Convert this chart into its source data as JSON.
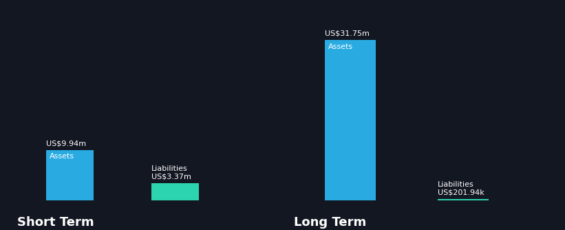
{
  "background_color": "#131722",
  "short_term_assets_value": 9.94,
  "short_term_liabilities_value": 3.37,
  "long_term_assets_value": 31.75,
  "long_term_liabilities_value": 0.20194,
  "short_term_assets_label": "US$9.94m",
  "short_term_liabilities_label": "US$3.37m",
  "long_term_assets_label": "US$31.75m",
  "long_term_liabilities_label": "US$201.94k",
  "assets_color": "#29abe2",
  "liabilities_color": "#2dd4b0",
  "assets_inner_label": "Assets",
  "liabilities_inner_label": "Liabilities",
  "short_term_footer": "Short Term",
  "long_term_footer": "Long Term",
  "text_color": "#ffffff",
  "label_fontsize": 8,
  "inner_label_fontsize": 8,
  "footer_fontsize": 13,
  "bar_edge_color": "none",
  "divider_color": "#3a3f55"
}
